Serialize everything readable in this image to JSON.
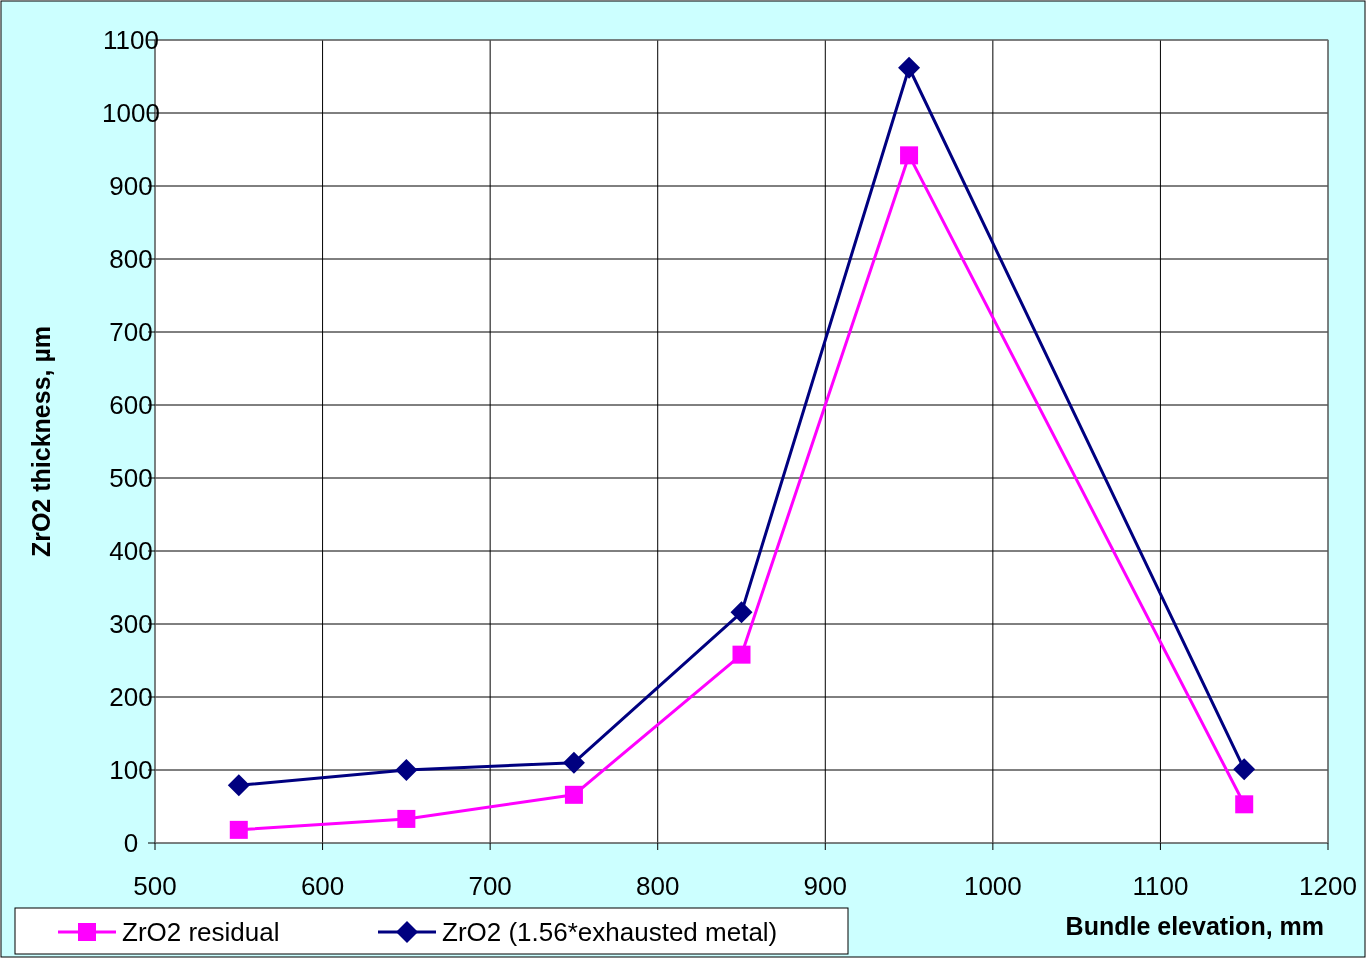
{
  "chart_data": {
    "type": "line",
    "xlabel": "Bundle elevation, mm",
    "ylabel": "ZrO2 thickness, µm",
    "x": [
      550,
      650,
      750,
      850,
      950,
      1150
    ],
    "series": [
      {
        "name": "ZrO2 residual",
        "color": "#ff00ff",
        "marker": "square",
        "values": [
          18,
          33,
          66,
          258,
          942,
          53
        ]
      },
      {
        "name": "ZrO2 (1.56*exhausted metal)",
        "color": "#000080",
        "marker": "diamond",
        "values": [
          79,
          100,
          110,
          316,
          1062,
          101
        ]
      }
    ],
    "xlim": [
      500,
      1200
    ],
    "xticks": [
      500,
      600,
      700,
      800,
      900,
      1000,
      1100,
      1200
    ],
    "ylim": [
      0,
      1100
    ],
    "yticks": [
      0,
      100,
      200,
      300,
      400,
      500,
      600,
      700,
      800,
      900,
      1000,
      1100
    ],
    "grid": true,
    "legend": "bottom left",
    "line_style": "solid"
  }
}
